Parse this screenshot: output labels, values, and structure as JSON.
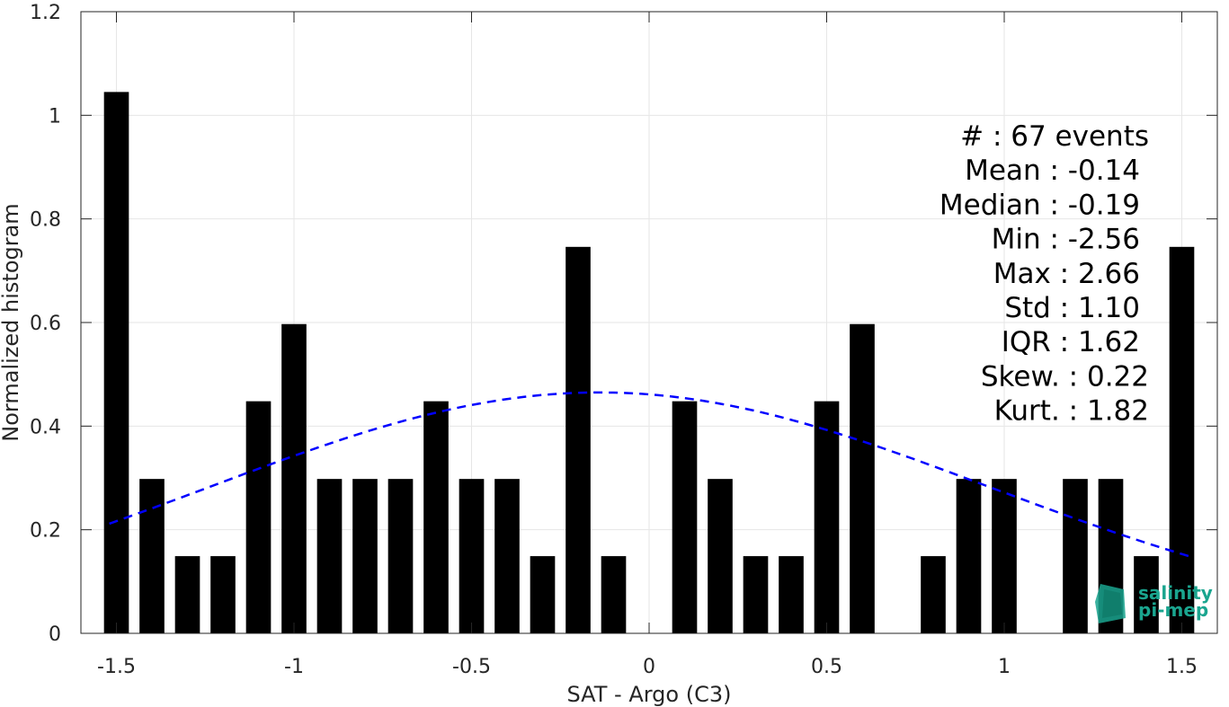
{
  "chart_data": {
    "type": "bar",
    "xlabel": "SAT - Argo (C3)",
    "ylabel": "Normalized histogram",
    "xlim": [
      -1.6,
      1.6
    ],
    "ylim": [
      0,
      1.2
    ],
    "grid": true,
    "x_ticks": [
      "-1.5",
      "-1",
      "-0.5",
      "0",
      "0.5",
      "1",
      "1.5"
    ],
    "y_ticks": [
      "0",
      "0.2",
      "0.4",
      "0.6",
      "0.8",
      "1",
      "1.2"
    ],
    "bar_color": "#000000",
    "bars": [
      {
        "x": -1.5,
        "y": 1.045
      },
      {
        "x": -1.4,
        "y": 0.298
      },
      {
        "x": -1.3,
        "y": 0.149
      },
      {
        "x": -1.2,
        "y": 0.149
      },
      {
        "x": -1.1,
        "y": 0.448
      },
      {
        "x": -1.0,
        "y": 0.597
      },
      {
        "x": -0.9,
        "y": 0.298
      },
      {
        "x": -0.8,
        "y": 0.298
      },
      {
        "x": -0.7,
        "y": 0.298
      },
      {
        "x": -0.6,
        "y": 0.448
      },
      {
        "x": -0.5,
        "y": 0.298
      },
      {
        "x": -0.4,
        "y": 0.298
      },
      {
        "x": -0.3,
        "y": 0.149
      },
      {
        "x": -0.2,
        "y": 0.746
      },
      {
        "x": -0.1,
        "y": 0.149
      },
      {
        "x": 0.0,
        "y": 0
      },
      {
        "x": 0.1,
        "y": 0.448
      },
      {
        "x": 0.2,
        "y": 0.298
      },
      {
        "x": 0.3,
        "y": 0.149
      },
      {
        "x": 0.4,
        "y": 0.149
      },
      {
        "x": 0.5,
        "y": 0.448
      },
      {
        "x": 0.6,
        "y": 0.597
      },
      {
        "x": 0.7,
        "y": 0
      },
      {
        "x": 0.8,
        "y": 0.149
      },
      {
        "x": 0.9,
        "y": 0.298
      },
      {
        "x": 1.0,
        "y": 0.298
      },
      {
        "x": 1.1,
        "y": 0
      },
      {
        "x": 1.2,
        "y": 0.298
      },
      {
        "x": 1.3,
        "y": 0.298
      },
      {
        "x": 1.4,
        "y": 0.149
      },
      {
        "x": 1.5,
        "y": 0.746
      }
    ],
    "fit_curve": {
      "style": "dashed",
      "color": "#0000ff",
      "mean": -0.14,
      "std": 1.1,
      "points": [
        {
          "x": -1.52,
          "y": 0.17
        },
        {
          "x": -1.2,
          "y": 0.25
        },
        {
          "x": -0.8,
          "y": 0.36
        },
        {
          "x": -0.4,
          "y": 0.44
        },
        {
          "x": -0.14,
          "y": 0.465
        },
        {
          "x": 0.1,
          "y": 0.455
        },
        {
          "x": 0.5,
          "y": 0.38
        },
        {
          "x": 0.9,
          "y": 0.27
        },
        {
          "x": 1.3,
          "y": 0.16
        },
        {
          "x": 1.52,
          "y": 0.11
        }
      ]
    },
    "stats": [
      "#  : 67 events",
      "Mean : -0.14",
      "Median : -0.19",
      "Min : -2.56",
      "Max : 2.66",
      "Std : 1.10",
      "IQR : 1.62",
      "Skew. : 0.22",
      "Kurt. : 1.82"
    ]
  },
  "logo": {
    "line1": "salinity",
    "line2": "pi-mep",
    "color": "#1aa58f"
  }
}
